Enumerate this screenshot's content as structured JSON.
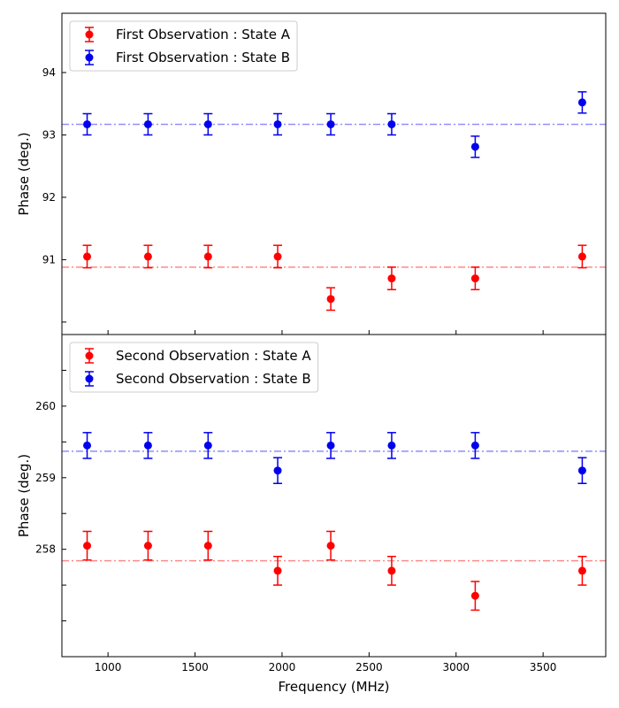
{
  "chart_data": [
    {
      "type": "scatter",
      "title": "",
      "xlabel": "",
      "ylabel": "Phase (deg.)",
      "xlim": [
        735,
        3860
      ],
      "ylim": [
        89.8,
        94.95
      ],
      "yticks": [
        91,
        92,
        93,
        94
      ],
      "yticks_minor": [
        90,
        91,
        92,
        93,
        94
      ],
      "xticks": [
        1000,
        1500,
        2000,
        2500,
        3000,
        3500
      ],
      "show_xtick_labels": false,
      "grid": false,
      "legend_position": "top-left",
      "reference_lines": [
        {
          "series": "State A",
          "y": 90.88,
          "color": "#ff8a8a",
          "style": "dash-dot"
        },
        {
          "series": "State B",
          "y": 93.17,
          "color": "#8f8fff",
          "style": "dash-dot"
        }
      ],
      "series": [
        {
          "name": "First Observation : State A",
          "color": "#ff0000",
          "x": [
            880,
            1230,
            1575,
            1975,
            2280,
            2630,
            3110,
            3725
          ],
          "y": [
            91.05,
            91.05,
            91.05,
            91.05,
            90.37,
            90.7,
            90.7,
            91.05
          ],
          "yerr": [
            0.18,
            0.18,
            0.18,
            0.18,
            0.18,
            0.18,
            0.18,
            0.18
          ]
        },
        {
          "name": "First Observation : State B",
          "color": "#0000ee",
          "x": [
            880,
            1230,
            1575,
            1975,
            2280,
            2630,
            3110,
            3725
          ],
          "y": [
            93.17,
            93.17,
            93.17,
            93.17,
            93.17,
            93.17,
            92.81,
            93.52
          ],
          "yerr": [
            0.17,
            0.17,
            0.17,
            0.17,
            0.17,
            0.17,
            0.17,
            0.17
          ]
        }
      ]
    },
    {
      "type": "scatter",
      "title": "",
      "xlabel": "Frequency (MHz)",
      "ylabel": "Phase (deg.)",
      "xlim": [
        735,
        3860
      ],
      "ylim": [
        256.5,
        261.0
      ],
      "yticks": [
        258,
        259,
        260
      ],
      "yticks_minor": [
        257,
        257.5,
        258,
        258.5,
        259,
        259.5,
        260,
        260.5
      ],
      "xticks": [
        1000,
        1500,
        2000,
        2500,
        3000,
        3500
      ],
      "show_xtick_labels": true,
      "grid": false,
      "legend_position": "top-left",
      "reference_lines": [
        {
          "series": "State A",
          "y": 257.84,
          "color": "#ff8a8a",
          "style": "dash-dot"
        },
        {
          "series": "State B",
          "y": 259.37,
          "color": "#8f8fff",
          "style": "dash-dot"
        }
      ],
      "series": [
        {
          "name": "Second Observation : State A",
          "color": "#ff0000",
          "x": [
            880,
            1230,
            1575,
            1975,
            2280,
            2630,
            3110,
            3725
          ],
          "y": [
            258.05,
            258.05,
            258.05,
            257.7,
            258.05,
            257.7,
            257.35,
            257.7
          ],
          "yerr": [
            0.2,
            0.2,
            0.2,
            0.2,
            0.2,
            0.2,
            0.2,
            0.2
          ]
        },
        {
          "name": "Second Observation : State B",
          "color": "#0000ee",
          "x": [
            880,
            1230,
            1575,
            1975,
            2280,
            2630,
            3110,
            3725
          ],
          "y": [
            259.45,
            259.45,
            259.45,
            259.1,
            259.45,
            259.45,
            259.45,
            259.1
          ],
          "yerr": [
            0.18,
            0.18,
            0.18,
            0.18,
            0.18,
            0.18,
            0.18,
            0.18
          ]
        }
      ]
    }
  ]
}
